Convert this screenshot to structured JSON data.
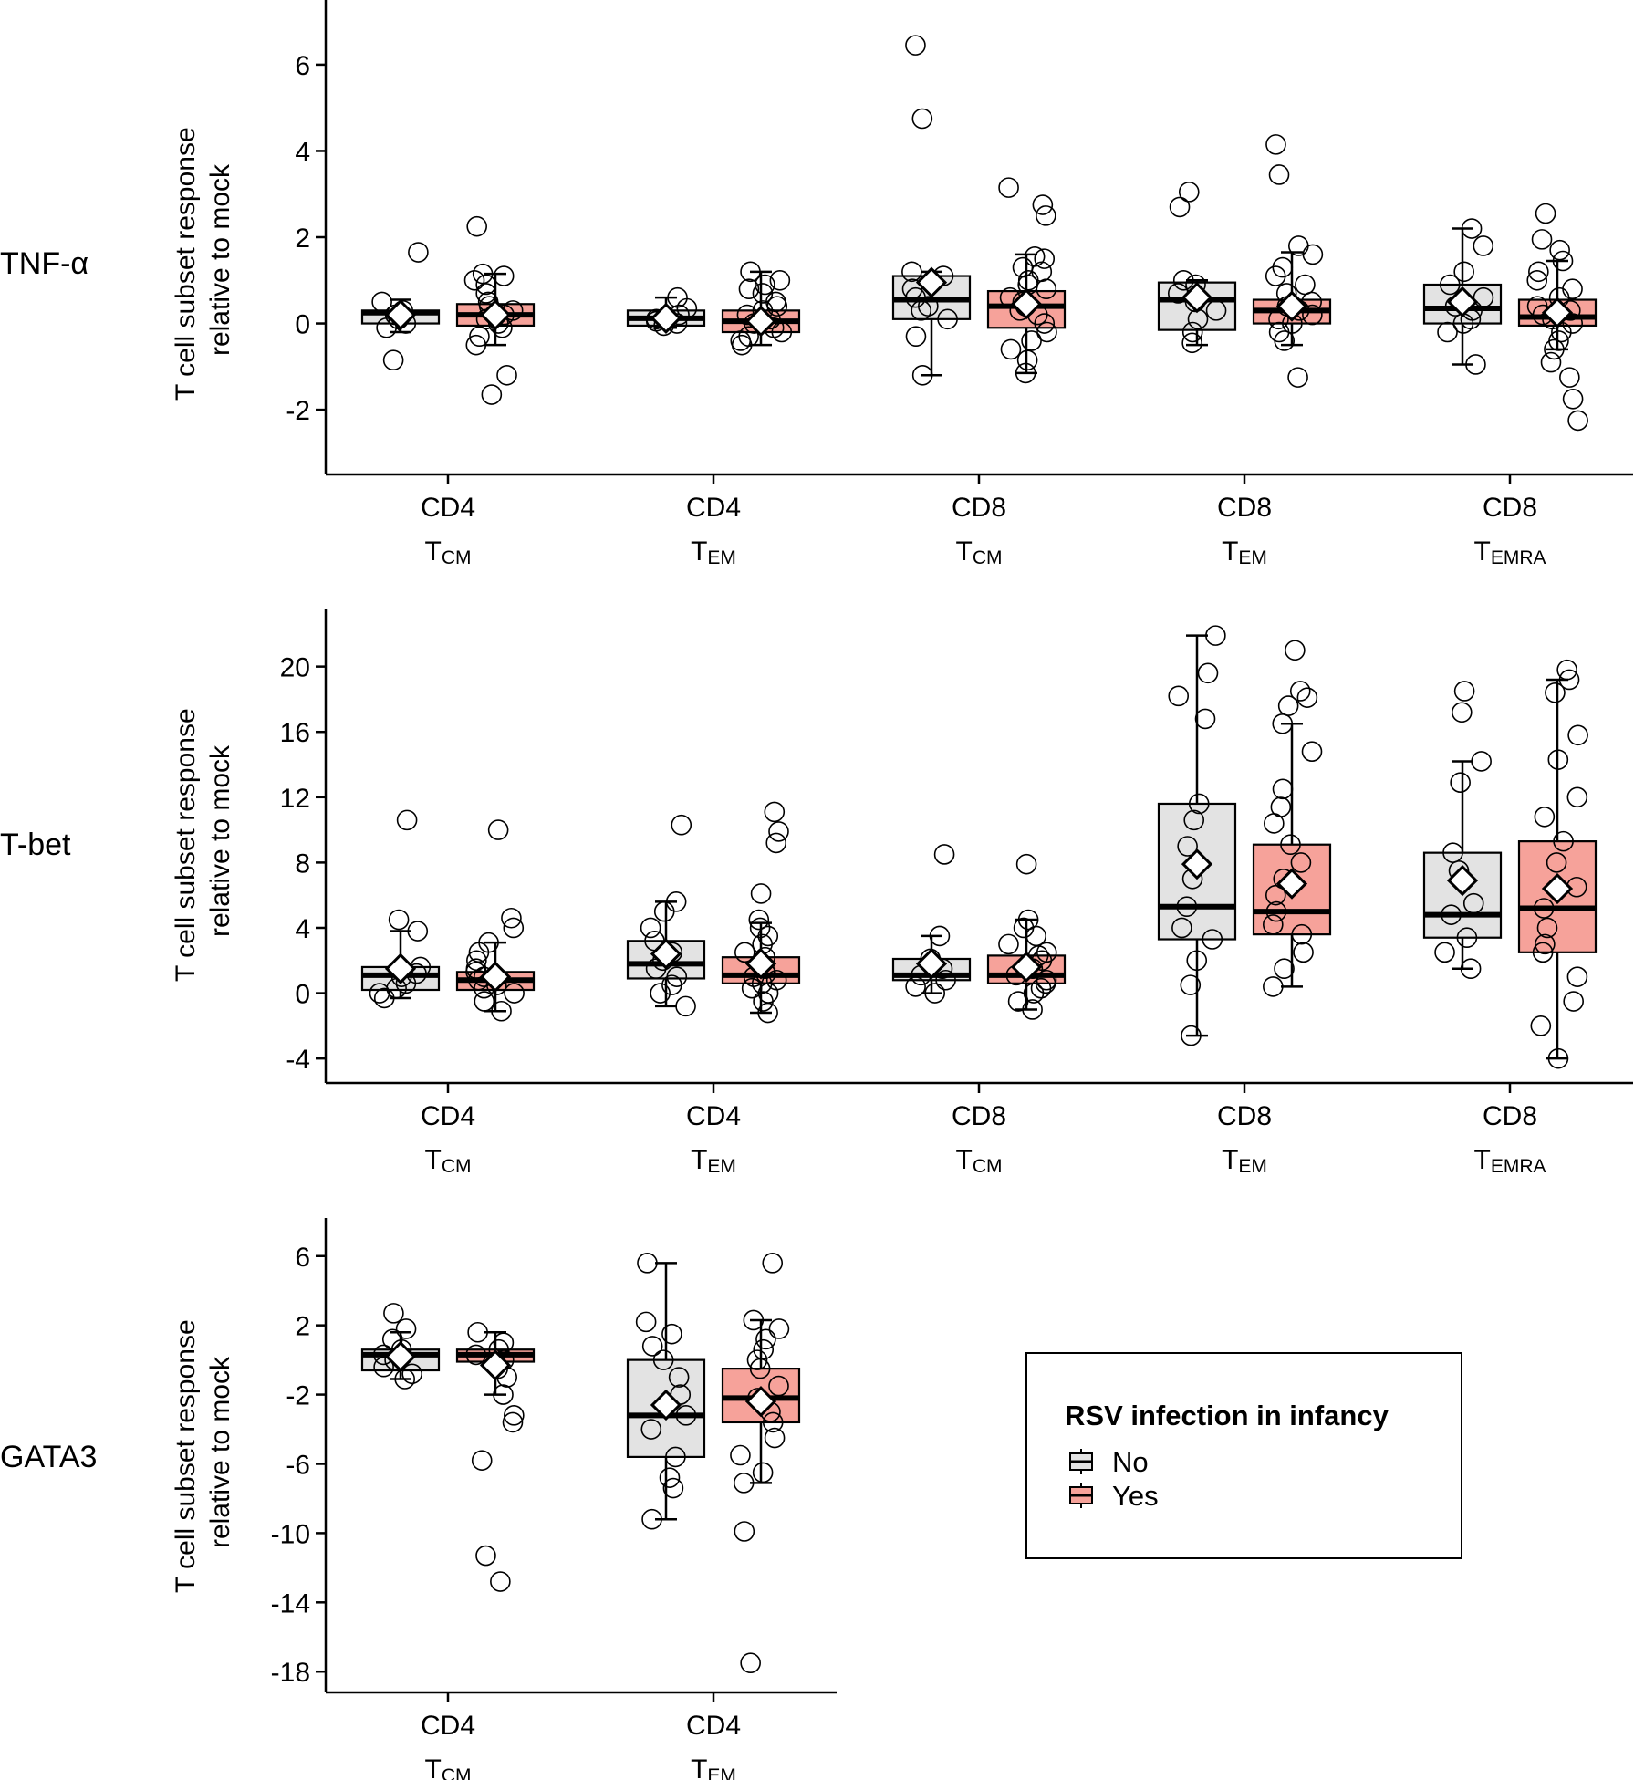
{
  "figure": {
    "ylabel_line1": "T cell subset response",
    "ylabel_line2": "relative to mock",
    "colors": {
      "No": "#e3e3e3",
      "Yes": "#f6a29a",
      "stroke": "#000000",
      "mean_fill": "#ffffff"
    }
  },
  "legend": {
    "title": "RSV infection in infancy",
    "items": [
      {
        "label": "No",
        "color": "#e3e3e3"
      },
      {
        "label": "Yes",
        "color": "#f6a29a"
      }
    ]
  },
  "chart_data": [
    {
      "type": "box",
      "title": "TNF-α",
      "ylim": [
        -3.5,
        7.5
      ],
      "yticks": [
        -2,
        0,
        2,
        4,
        6
      ],
      "categories": [
        {
          "main": "CD4",
          "sub": "CM"
        },
        {
          "main": "CD4",
          "sub": "EM"
        },
        {
          "main": "CD8",
          "sub": "CM"
        },
        {
          "main": "CD8",
          "sub": "EM"
        },
        {
          "main": "CD8",
          "sub": "EMRA"
        }
      ],
      "series": [
        {
          "name": "No",
          "boxes": [
            {
              "q1": 0.0,
              "median": 0.25,
              "q3": 0.3,
              "lower": -0.2,
              "upper": 0.55,
              "mean": 0.2,
              "points": [
                1.65,
                0.5,
                0.3,
                0.2,
                0.1,
                0.0,
                -0.1,
                -0.85
              ]
            },
            {
              "q1": -0.05,
              "median": 0.12,
              "q3": 0.3,
              "lower": -0.1,
              "upper": 0.6,
              "mean": 0.12,
              "points": [
                0.6,
                0.35,
                0.2,
                0.1,
                0.05,
                0.0,
                -0.05
              ]
            },
            {
              "q1": 0.1,
              "median": 0.55,
              "q3": 1.1,
              "lower": -1.2,
              "upper": 1.2,
              "mean": 0.95,
              "points": [
                6.45,
                4.75,
                1.2,
                1.1,
                0.8,
                0.6,
                0.4,
                0.3,
                0.1,
                -0.3,
                -1.2
              ]
            },
            {
              "q1": -0.15,
              "median": 0.55,
              "q3": 0.95,
              "lower": -0.5,
              "upper": 1.0,
              "mean": 0.6,
              "points": [
                3.05,
                2.7,
                1.0,
                0.9,
                0.7,
                0.5,
                0.3,
                0.1,
                -0.2,
                -0.45
              ]
            },
            {
              "q1": 0.0,
              "median": 0.35,
              "q3": 0.9,
              "lower": -0.95,
              "upper": 2.2,
              "mean": 0.5,
              "points": [
                2.2,
                1.8,
                1.2,
                0.9,
                0.6,
                0.4,
                0.3,
                0.1,
                0.0,
                -0.2,
                -0.95
              ]
            }
          ]
        },
        {
          "name": "Yes",
          "boxes": [
            {
              "q1": -0.05,
              "median": 0.2,
              "q3": 0.45,
              "lower": -0.5,
              "upper": 1.15,
              "mean": 0.2,
              "points": [
                2.25,
                1.15,
                1.1,
                1.0,
                0.9,
                0.7,
                0.5,
                0.4,
                0.3,
                0.2,
                0.1,
                0.0,
                -0.1,
                -0.3,
                -0.5,
                -1.2,
                -1.65
              ]
            },
            {
              "q1": -0.2,
              "median": 0.05,
              "q3": 0.3,
              "lower": -0.5,
              "upper": 1.2,
              "mean": 0.05,
              "points": [
                1.2,
                1.0,
                0.9,
                0.8,
                0.7,
                0.5,
                0.4,
                0.3,
                0.2,
                0.1,
                0.0,
                -0.1,
                -0.2,
                -0.3,
                -0.4,
                -0.5
              ]
            },
            {
              "q1": -0.1,
              "median": 0.4,
              "q3": 0.75,
              "lower": -1.15,
              "upper": 1.6,
              "mean": 0.45,
              "points": [
                3.15,
                2.75,
                2.5,
                1.55,
                1.5,
                1.3,
                1.2,
                1.0,
                0.9,
                0.8,
                0.6,
                0.5,
                0.4,
                0.3,
                0.2,
                0.0,
                -0.2,
                -0.4,
                -0.6,
                -0.85,
                -1.15
              ]
            },
            {
              "q1": 0.0,
              "median": 0.3,
              "q3": 0.55,
              "lower": -0.5,
              "upper": 1.65,
              "mean": 0.4,
              "points": [
                4.15,
                3.45,
                1.8,
                1.6,
                1.3,
                1.1,
                0.9,
                0.7,
                0.5,
                0.4,
                0.3,
                0.2,
                0.1,
                0.0,
                -0.2,
                -0.4,
                -1.25
              ]
            },
            {
              "q1": -0.05,
              "median": 0.15,
              "q3": 0.55,
              "lower": -0.6,
              "upper": 1.45,
              "mean": 0.25,
              "points": [
                2.55,
                1.95,
                1.7,
                1.45,
                1.2,
                1.0,
                0.8,
                0.6,
                0.4,
                0.3,
                0.2,
                0.1,
                0.0,
                -0.2,
                -0.4,
                -0.6,
                -0.9,
                -1.25,
                -1.75,
                -2.25
              ]
            }
          ]
        }
      ]
    },
    {
      "type": "box",
      "title": "T-bet",
      "ylim": [
        -5.5,
        23.5
      ],
      "yticks": [
        -4,
        0,
        4,
        8,
        12,
        16,
        20
      ],
      "categories": [
        {
          "main": "CD4",
          "sub": "CM"
        },
        {
          "main": "CD4",
          "sub": "EM"
        },
        {
          "main": "CD8",
          "sub": "CM"
        },
        {
          "main": "CD8",
          "sub": "EM"
        },
        {
          "main": "CD8",
          "sub": "EMRA"
        }
      ],
      "series": [
        {
          "name": "No",
          "boxes": [
            {
              "q1": 0.2,
              "median": 1.1,
              "q3": 1.6,
              "lower": -0.3,
              "upper": 3.8,
              "mean": 1.5,
              "points": [
                10.6,
                4.5,
                3.8,
                1.6,
                1.2,
                1.0,
                0.6,
                0.3,
                0.0,
                -0.3
              ]
            },
            {
              "q1": 0.9,
              "median": 1.8,
              "q3": 3.2,
              "lower": -0.8,
              "upper": 5.6,
              "mean": 2.4,
              "points": [
                10.3,
                5.6,
                5.0,
                4.0,
                3.2,
                2.5,
                2.0,
                1.5,
                1.0,
                0.5,
                0.0,
                -0.8
              ]
            },
            {
              "q1": 0.8,
              "median": 1.1,
              "q3": 2.1,
              "lower": 0.0,
              "upper": 3.5,
              "mean": 1.8,
              "points": [
                8.5,
                3.5,
                2.1,
                1.5,
                1.1,
                0.8,
                0.4,
                0.0
              ]
            },
            {
              "q1": 3.3,
              "median": 5.3,
              "q3": 11.6,
              "lower": -2.6,
              "upper": 21.9,
              "mean": 7.9,
              "points": [
                21.9,
                19.6,
                18.2,
                16.8,
                11.6,
                10.6,
                9.0,
                7.0,
                5.3,
                4.0,
                3.3,
                2.0,
                0.5,
                -2.6
              ]
            },
            {
              "q1": 3.4,
              "median": 4.8,
              "q3": 8.6,
              "lower": 1.5,
              "upper": 14.2,
              "mean": 6.9,
              "points": [
                18.5,
                17.2,
                14.2,
                12.9,
                8.6,
                7.5,
                5.5,
                4.8,
                3.4,
                2.5,
                1.5
              ]
            }
          ]
        },
        {
          "name": "Yes",
          "boxes": [
            {
              "q1": 0.2,
              "median": 0.8,
              "q3": 1.3,
              "lower": -1.1,
              "upper": 3.1,
              "mean": 1.0,
              "points": [
                10.0,
                4.6,
                4.0,
                3.1,
                2.5,
                2.0,
                1.5,
                1.3,
                1.0,
                0.8,
                0.5,
                0.3,
                0.0,
                -0.5,
                -1.1
              ]
            },
            {
              "q1": 0.6,
              "median": 1.1,
              "q3": 2.2,
              "lower": -1.2,
              "upper": 4.3,
              "mean": 1.8,
              "points": [
                11.1,
                9.9,
                9.2,
                6.1,
                4.5,
                4.0,
                3.5,
                3.0,
                2.5,
                2.2,
                1.8,
                1.5,
                1.2,
                1.0,
                0.8,
                0.6,
                0.3,
                0.0,
                -0.5,
                -1.2
              ]
            },
            {
              "q1": 0.6,
              "median": 1.1,
              "q3": 2.3,
              "lower": -1.0,
              "upper": 4.5,
              "mean": 1.6,
              "points": [
                7.9,
                4.5,
                4.0,
                3.5,
                3.0,
                2.5,
                2.3,
                2.0,
                1.5,
                1.1,
                0.8,
                0.6,
                0.3,
                0.0,
                -0.5,
                -1.0
              ]
            },
            {
              "q1": 3.6,
              "median": 5.0,
              "q3": 9.1,
              "lower": 0.4,
              "upper": 16.5,
              "mean": 6.7,
              "points": [
                21.0,
                18.5,
                18.1,
                17.6,
                16.5,
                14.8,
                12.5,
                11.4,
                10.4,
                9.1,
                8.0,
                7.0,
                6.0,
                5.0,
                4.2,
                3.6,
                2.5,
                1.5,
                0.4
              ]
            },
            {
              "q1": 2.5,
              "median": 5.2,
              "q3": 9.3,
              "lower": -4.0,
              "upper": 19.2,
              "mean": 6.4,
              "points": [
                19.8,
                19.2,
                18.4,
                15.8,
                14.3,
                12.0,
                10.8,
                9.3,
                8.0,
                6.5,
                5.2,
                4.0,
                3.0,
                2.5,
                1.0,
                -0.5,
                -2.0,
                -4.0
              ]
            }
          ]
        }
      ]
    },
    {
      "type": "box",
      "title": "GATA3",
      "ylim": [
        -19.2,
        8.2
      ],
      "yticks": [
        -18,
        -14,
        -10,
        -6,
        -2,
        2,
        6
      ],
      "categories": [
        {
          "main": "CD4",
          "sub": "CM"
        },
        {
          "main": "CD4",
          "sub": "EM"
        }
      ],
      "series": [
        {
          "name": "No",
          "boxes": [
            {
              "q1": -0.6,
              "median": 0.3,
              "q3": 0.6,
              "lower": -1.1,
              "upper": 1.6,
              "mean": 0.2,
              "points": [
                2.7,
                1.8,
                1.2,
                0.6,
                0.3,
                0.0,
                -0.4,
                -0.8,
                -1.1
              ]
            },
            {
              "q1": -5.6,
              "median": -3.2,
              "q3": 0.0,
              "lower": -9.2,
              "upper": 5.6,
              "mean": -2.6,
              "points": [
                5.6,
                2.2,
                1.5,
                0.8,
                0.0,
                -1.0,
                -2.0,
                -3.2,
                -4.0,
                -5.6,
                -6.8,
                -7.4,
                -9.2
              ]
            }
          ]
        },
        {
          "name": "Yes",
          "boxes": [
            {
              "q1": -0.1,
              "median": 0.3,
              "q3": 0.6,
              "lower": -2.0,
              "upper": 1.6,
              "mean": -0.3,
              "points": [
                1.6,
                1.0,
                0.6,
                0.3,
                0.0,
                -0.5,
                -1.0,
                -2.0,
                -3.2,
                -3.6,
                -5.8,
                -11.3,
                -12.8
              ]
            },
            {
              "q1": -3.6,
              "median": -2.2,
              "q3": -0.5,
              "lower": -7.1,
              "upper": 2.3,
              "mean": -2.4,
              "points": [
                5.6,
                2.3,
                1.8,
                1.2,
                0.6,
                0.0,
                -0.5,
                -1.5,
                -2.2,
                -3.0,
                -3.6,
                -4.5,
                -5.5,
                -6.5,
                -7.1,
                -9.9,
                -17.5
              ]
            }
          ]
        }
      ]
    }
  ]
}
